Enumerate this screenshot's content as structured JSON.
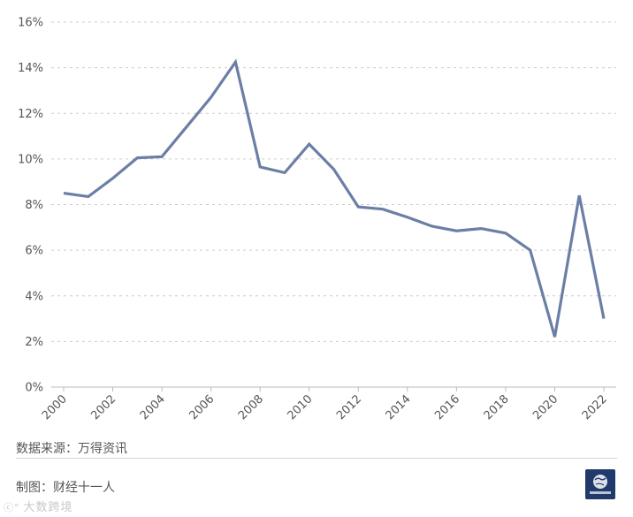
{
  "chart_data": {
    "type": "line",
    "title": "",
    "xlabel": "",
    "ylabel": "",
    "x": [
      2000,
      2001,
      2002,
      2003,
      2004,
      2005,
      2006,
      2007,
      2008,
      2009,
      2010,
      2011,
      2012,
      2013,
      2014,
      2015,
      2016,
      2017,
      2018,
      2019,
      2020,
      2021,
      2022
    ],
    "series": [
      {
        "name": "",
        "values": [
          8.5,
          8.35,
          9.15,
          10.05,
          10.1,
          11.4,
          12.7,
          14.25,
          9.65,
          9.4,
          10.65,
          9.55,
          7.9,
          7.8,
          7.45,
          7.05,
          6.85,
          6.95,
          6.75,
          6.0,
          2.2,
          8.4,
          3.0
        ]
      }
    ],
    "x_tick_labels": [
      "2000",
      "2002",
      "2004",
      "2006",
      "2008",
      "2010",
      "2012",
      "2014",
      "2016",
      "2018",
      "2020",
      "2022"
    ],
    "y_tick_labels": [
      "0%",
      "2%",
      "4%",
      "6%",
      "8%",
      "10%",
      "12%",
      "14%",
      "16%"
    ],
    "ylim": [
      0,
      16
    ],
    "xlim": [
      2000,
      2022
    ],
    "grid": "horizontal dashed",
    "line_color": "#6b7fa6"
  },
  "footer": {
    "source": "数据来源：万得资讯",
    "maker": "制图：财经十一人",
    "watermark": "大数跨境",
    "watermark_glyph": "ⓒ°"
  },
  "colors": {
    "line": "#6b7fa6",
    "grid": "#cccccc",
    "axis": "#bbbbbb",
    "logo_bg": "#1f3a6b"
  }
}
